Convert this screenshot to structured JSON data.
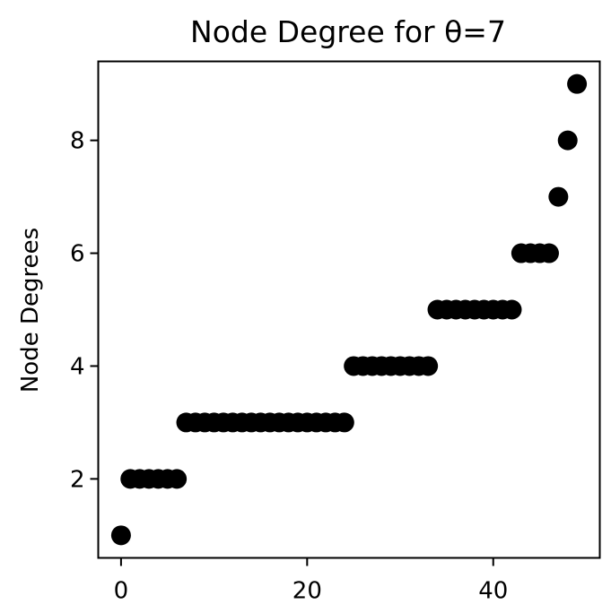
{
  "chart_data": {
    "type": "scatter",
    "title": "Node Degree for θ=7",
    "xlabel": "",
    "ylabel": "Node Degrees",
    "xlim": [
      -2.45,
      51.45
    ],
    "ylim": [
      0.6,
      9.4
    ],
    "xticks": [
      0,
      20,
      40
    ],
    "yticks": [
      2,
      4,
      6,
      8
    ],
    "grid": false,
    "marker_color": "#000000",
    "series": [
      {
        "x": [
          0,
          1,
          2,
          3,
          4,
          5,
          6,
          7,
          8,
          9,
          10,
          11,
          12,
          13,
          14,
          15,
          16,
          17,
          18,
          19,
          20,
          21,
          22,
          23,
          24,
          25,
          26,
          27,
          28,
          29,
          30,
          31,
          32,
          33,
          34,
          35,
          36,
          37,
          38,
          39,
          40,
          41,
          42,
          43,
          44,
          45,
          46,
          47,
          48,
          49
        ],
        "y": [
          1,
          2,
          2,
          2,
          2,
          2,
          2,
          3,
          3,
          3,
          3,
          3,
          3,
          3,
          3,
          3,
          3,
          3,
          3,
          3,
          3,
          3,
          3,
          3,
          3,
          4,
          4,
          4,
          4,
          4,
          4,
          4,
          4,
          4,
          5,
          5,
          5,
          5,
          5,
          5,
          5,
          5,
          5,
          6,
          6,
          6,
          6,
          7,
          8,
          9
        ]
      }
    ]
  }
}
